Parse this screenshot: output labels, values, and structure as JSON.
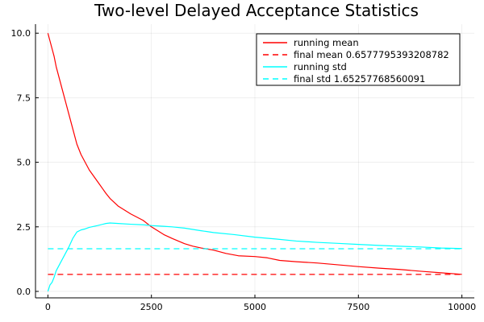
{
  "chart_data": {
    "type": "line",
    "title": "Two-level Delayed Acceptance Statistics",
    "xlabel": "",
    "ylabel": "",
    "xlim": [
      -300,
      10300
    ],
    "ylim": [
      -0.25,
      10.35
    ],
    "x_ticks": [
      0,
      2500,
      5000,
      7500,
      10000
    ],
    "x_tick_labels": [
      "0",
      "2500",
      "5000",
      "7500",
      "10000"
    ],
    "y_ticks": [
      0,
      2.5,
      5,
      7.5,
      10
    ],
    "y_tick_labels": [
      "0.0",
      "2.5",
      "5.0",
      "7.5",
      "10.0"
    ],
    "grid": true,
    "legend_position": "top-right",
    "series": [
      {
        "name": "running mean",
        "color": "#ff0000",
        "dash": "solid",
        "x": [
          0,
          50,
          100,
          150,
          200,
          300,
          400,
          500,
          600,
          700,
          800,
          900,
          1000,
          1200,
          1400,
          1500,
          1700,
          2000,
          2300,
          2500,
          2800,
          3000,
          3300,
          3500,
          3700,
          4000,
          4300,
          4600,
          5000,
          5300,
          5600,
          6000,
          6500,
          7000,
          7500,
          8000,
          8500,
          9000,
          9500,
          10000
        ],
        "y": [
          10.0,
          9.7,
          9.4,
          9.1,
          8.7,
          8.1,
          7.5,
          6.9,
          6.3,
          5.7,
          5.3,
          5.0,
          4.7,
          4.25,
          3.8,
          3.6,
          3.3,
          3.0,
          2.75,
          2.5,
          2.2,
          2.05,
          1.85,
          1.75,
          1.68,
          1.6,
          1.47,
          1.38,
          1.35,
          1.3,
          1.2,
          1.15,
          1.1,
          1.03,
          0.96,
          0.9,
          0.85,
          0.78,
          0.72,
          0.66
        ]
      },
      {
        "name": "final mean 0.6577795393208782",
        "color": "#ff0000",
        "dash": "dashed",
        "x": [
          0,
          10000
        ],
        "y": [
          0.6577795393208782,
          0.6577795393208782
        ]
      },
      {
        "name": "running std",
        "color": "#00ffff",
        "dash": "solid",
        "x": [
          0,
          50,
          100,
          150,
          200,
          300,
          400,
          500,
          600,
          700,
          800,
          900,
          1000,
          1200,
          1400,
          1500,
          1700,
          2000,
          2300,
          2500,
          2800,
          3000,
          3300,
          3500,
          3700,
          4000,
          4500,
          5000,
          5500,
          6000,
          6500,
          7000,
          7500,
          8000,
          8500,
          9000,
          9500,
          10000
        ],
        "y": [
          0.0,
          0.25,
          0.35,
          0.55,
          0.8,
          1.1,
          1.4,
          1.7,
          2.05,
          2.3,
          2.38,
          2.42,
          2.48,
          2.55,
          2.63,
          2.65,
          2.63,
          2.6,
          2.58,
          2.55,
          2.52,
          2.5,
          2.45,
          2.4,
          2.35,
          2.28,
          2.2,
          2.1,
          2.03,
          1.95,
          1.9,
          1.86,
          1.82,
          1.78,
          1.75,
          1.72,
          1.68,
          1.66
        ]
      },
      {
        "name": "final std 1.65257768560091",
        "color": "#00ffff",
        "dash": "dashed",
        "x": [
          0,
          10000
        ],
        "y": [
          1.65257768560091,
          1.65257768560091
        ]
      }
    ]
  }
}
